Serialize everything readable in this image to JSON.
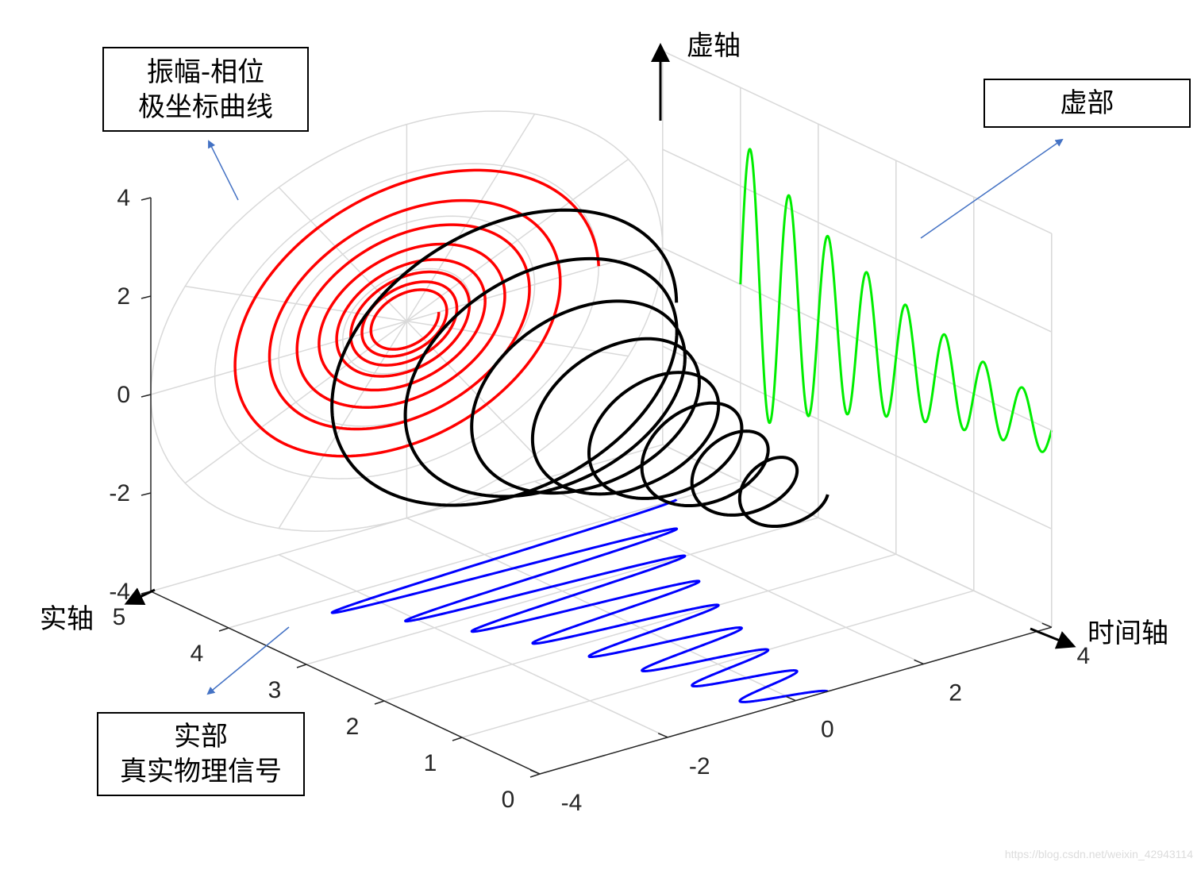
{
  "annotations": {
    "polar_box": {
      "line1": "振幅-相位",
      "line2": "极坐标曲线"
    },
    "imag_box": {
      "line1": "虚部"
    },
    "real_box": {
      "line1": "实部",
      "line2": "真实物理信号"
    }
  },
  "axis_labels": {
    "vertical": "虚轴",
    "left": "实轴",
    "right": "时间轴"
  },
  "ticks": {
    "vertical": [
      "4",
      "2",
      "0",
      "-2",
      "-4"
    ],
    "left_edge": [
      "5",
      "4",
      "3",
      "2",
      "1",
      "0"
    ],
    "right_edge": [
      "-4",
      "-2",
      "0",
      "2",
      "4"
    ]
  },
  "colors": {
    "helix": "#000000",
    "polar_projection": "#ff0000",
    "imag_projection": "#00ee00",
    "real_projection": "#0000ff",
    "annotation_arrow": "#4472c4",
    "grid": "#d9d9d9"
  },
  "watermark": "https://blog.csdn.net/weixin_42943114"
}
